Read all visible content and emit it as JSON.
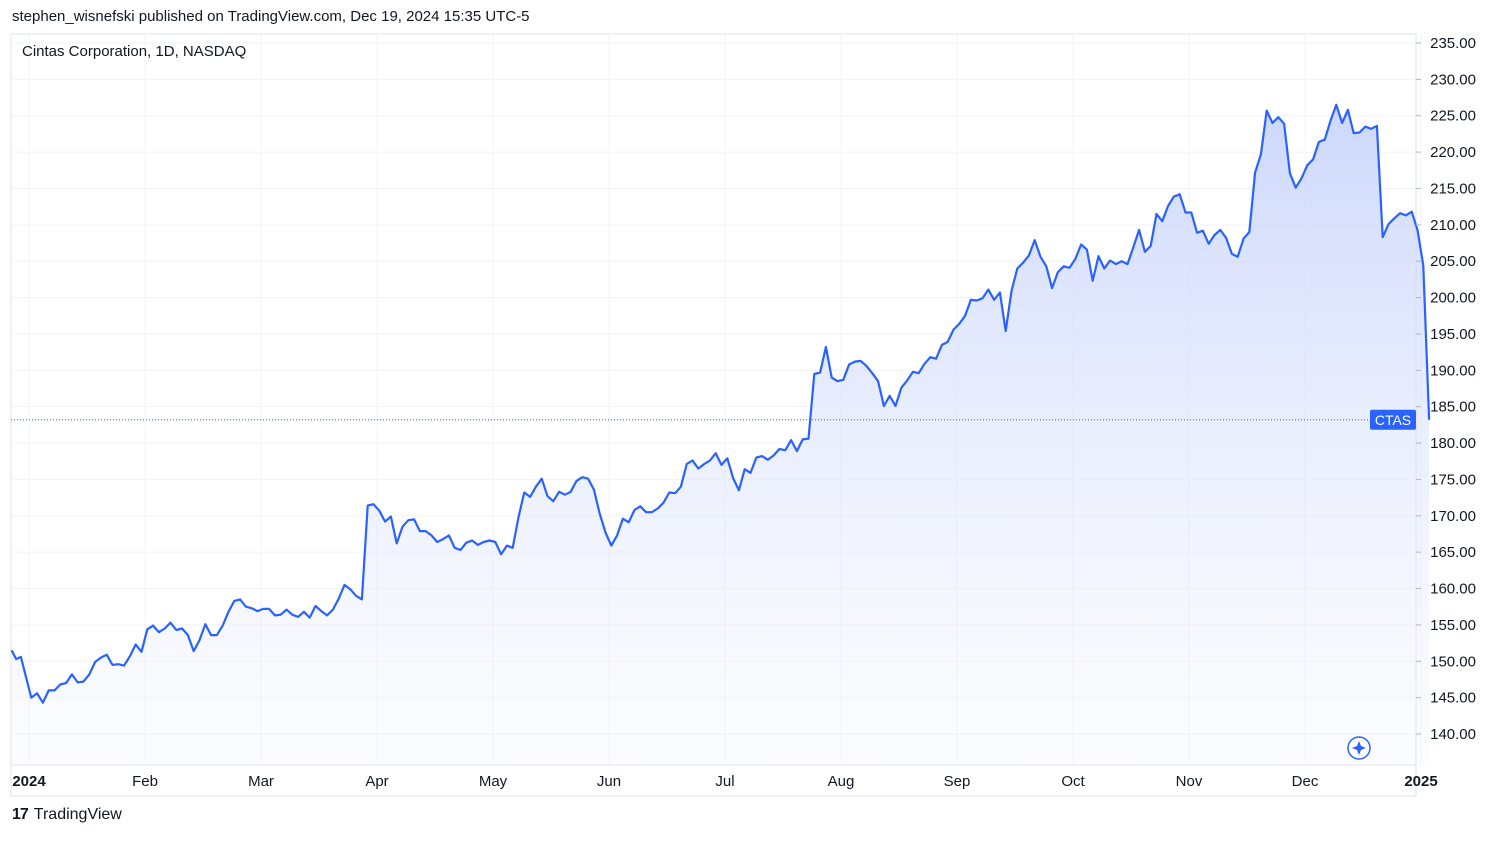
{
  "header": {
    "published_by": "stephen_wisnefski published on TradingView.com, Dec 19, 2024 15:35 UTC-5"
  },
  "footer": {
    "logo_mark": "17",
    "brand": "TradingView"
  },
  "colors": {
    "line": "#2962ff",
    "grid": "#f0f3fa",
    "ticker_badge": "#2962ff",
    "fill_top": "#c7d3fb"
  },
  "chart_data": {
    "type": "area",
    "title": "Cintas Corporation, 1D, NASDAQ",
    "ticker": "CTAS",
    "last_value": 183.2,
    "xlabel": "",
    "ylabel": "",
    "ylim": [
      136.0,
      236.0
    ],
    "y_ticks": [
      235.0,
      230.0,
      225.0,
      220.0,
      215.0,
      210.0,
      205.0,
      200.0,
      195.0,
      190.0,
      185.0,
      180.0,
      175.0,
      170.0,
      165.0,
      160.0,
      155.0,
      150.0,
      145.0,
      140.0
    ],
    "y_tick_labels": [
      "235.00",
      "230.00",
      "225.00",
      "220.00",
      "215.00",
      "210.00",
      "205.00",
      "200.00",
      "195.00",
      "190.00",
      "185.00",
      "180.00",
      "175.00",
      "170.00",
      "165.00",
      "160.00",
      "155.00",
      "150.00",
      "145.00",
      "140.00"
    ],
    "x_range": [
      -0.6,
      12.0
    ],
    "x_ticks": [
      {
        "label": "2024",
        "pos": 0.0,
        "bold": true
      },
      {
        "label": "Feb",
        "pos": 1.0
      },
      {
        "label": "Mar",
        "pos": 2.0
      },
      {
        "label": "Apr",
        "pos": 3.0
      },
      {
        "label": "May",
        "pos": 4.0
      },
      {
        "label": "Jun",
        "pos": 5.0
      },
      {
        "label": "Jul",
        "pos": 6.0
      },
      {
        "label": "Aug",
        "pos": 7.0
      },
      {
        "label": "Sep",
        "pos": 8.0
      },
      {
        "label": "Oct",
        "pos": 9.0
      },
      {
        "label": "Nov",
        "pos": 10.0
      },
      {
        "label": "Dec",
        "pos": 11.0
      },
      {
        "label": "2025",
        "pos": 12.0,
        "bold": true
      }
    ],
    "series": [
      {
        "name": "CTAS",
        "points": [
          [
            -0.15,
            151.5
          ],
          [
            -0.11,
            150.3
          ],
          [
            -0.07,
            150.6
          ],
          [
            -0.03,
            148.1
          ],
          [
            0.02,
            145.0
          ],
          [
            0.07,
            145.6
          ],
          [
            0.12,
            144.3
          ],
          [
            0.17,
            146.0
          ],
          [
            0.22,
            146.0
          ],
          [
            0.27,
            146.8
          ],
          [
            0.32,
            147.0
          ],
          [
            0.37,
            148.2
          ],
          [
            0.42,
            147.1
          ],
          [
            0.47,
            147.2
          ],
          [
            0.52,
            148.2
          ],
          [
            0.57,
            149.9
          ],
          [
            0.62,
            150.5
          ],
          [
            0.67,
            150.9
          ],
          [
            0.72,
            149.5
          ],
          [
            0.77,
            149.6
          ],
          [
            0.82,
            149.4
          ],
          [
            0.87,
            150.7
          ],
          [
            0.92,
            152.3
          ],
          [
            0.97,
            151.3
          ],
          [
            1.02,
            154.4
          ],
          [
            1.07,
            154.9
          ],
          [
            1.12,
            154.0
          ],
          [
            1.17,
            154.5
          ],
          [
            1.22,
            155.3
          ],
          [
            1.27,
            154.3
          ],
          [
            1.32,
            154.5
          ],
          [
            1.37,
            153.6
          ],
          [
            1.42,
            151.4
          ],
          [
            1.47,
            152.9
          ],
          [
            1.52,
            155.1
          ],
          [
            1.57,
            153.6
          ],
          [
            1.62,
            153.6
          ],
          [
            1.67,
            154.9
          ],
          [
            1.72,
            156.8
          ],
          [
            1.77,
            158.3
          ],
          [
            1.82,
            158.5
          ],
          [
            1.87,
            157.5
          ],
          [
            1.92,
            157.3
          ],
          [
            1.97,
            156.9
          ],
          [
            2.02,
            157.2
          ],
          [
            2.07,
            157.2
          ],
          [
            2.12,
            156.3
          ],
          [
            2.17,
            156.4
          ],
          [
            2.22,
            157.1
          ],
          [
            2.27,
            156.4
          ],
          [
            2.32,
            156.1
          ],
          [
            2.37,
            156.8
          ],
          [
            2.42,
            156.0
          ],
          [
            2.47,
            157.6
          ],
          [
            2.52,
            156.9
          ],
          [
            2.57,
            156.3
          ],
          [
            2.62,
            157.1
          ],
          [
            2.67,
            158.6
          ],
          [
            2.72,
            160.5
          ],
          [
            2.77,
            159.9
          ],
          [
            2.82,
            159.0
          ],
          [
            2.87,
            158.5
          ],
          [
            2.92,
            171.4
          ],
          [
            2.97,
            171.6
          ],
          [
            3.02,
            170.7
          ],
          [
            3.07,
            169.2
          ],
          [
            3.12,
            169.9
          ],
          [
            3.17,
            166.2
          ],
          [
            3.22,
            168.5
          ],
          [
            3.27,
            169.4
          ],
          [
            3.32,
            169.5
          ],
          [
            3.37,
            167.9
          ],
          [
            3.42,
            167.9
          ],
          [
            3.47,
            167.3
          ],
          [
            3.52,
            166.4
          ],
          [
            3.57,
            166.8
          ],
          [
            3.62,
            167.3
          ],
          [
            3.67,
            165.6
          ],
          [
            3.72,
            165.3
          ],
          [
            3.77,
            166.3
          ],
          [
            3.82,
            166.6
          ],
          [
            3.87,
            166.0
          ],
          [
            3.92,
            166.4
          ],
          [
            3.97,
            166.6
          ],
          [
            4.02,
            166.4
          ],
          [
            4.07,
            164.7
          ],
          [
            4.12,
            165.9
          ],
          [
            4.17,
            165.6
          ],
          [
            4.22,
            169.8
          ],
          [
            4.27,
            173.2
          ],
          [
            4.32,
            172.6
          ],
          [
            4.37,
            174.0
          ],
          [
            4.42,
            175.1
          ],
          [
            4.47,
            172.7
          ],
          [
            4.52,
            172.0
          ],
          [
            4.57,
            173.3
          ],
          [
            4.62,
            172.9
          ],
          [
            4.67,
            173.3
          ],
          [
            4.72,
            174.8
          ],
          [
            4.77,
            175.3
          ],
          [
            4.82,
            175.1
          ],
          [
            4.87,
            173.6
          ],
          [
            4.92,
            170.3
          ],
          [
            4.97,
            167.7
          ],
          [
            5.02,
            165.9
          ],
          [
            5.07,
            167.3
          ],
          [
            5.12,
            169.6
          ],
          [
            5.17,
            169.1
          ],
          [
            5.22,
            170.8
          ],
          [
            5.27,
            171.3
          ],
          [
            5.32,
            170.5
          ],
          [
            5.37,
            170.5
          ],
          [
            5.42,
            171.0
          ],
          [
            5.47,
            171.8
          ],
          [
            5.52,
            173.2
          ],
          [
            5.57,
            173.1
          ],
          [
            5.62,
            174.0
          ],
          [
            5.67,
            177.1
          ],
          [
            5.72,
            177.6
          ],
          [
            5.77,
            176.5
          ],
          [
            5.82,
            177.1
          ],
          [
            5.87,
            177.6
          ],
          [
            5.92,
            178.6
          ],
          [
            5.97,
            177.0
          ],
          [
            6.02,
            177.9
          ],
          [
            6.07,
            175.2
          ],
          [
            6.12,
            173.5
          ],
          [
            6.17,
            176.4
          ],
          [
            6.22,
            175.9
          ],
          [
            6.27,
            178.0
          ],
          [
            6.32,
            178.2
          ],
          [
            6.37,
            177.7
          ],
          [
            6.42,
            178.3
          ],
          [
            6.47,
            179.2
          ],
          [
            6.52,
            179.0
          ],
          [
            6.57,
            180.4
          ],
          [
            6.62,
            178.9
          ],
          [
            6.67,
            180.5
          ],
          [
            6.72,
            180.6
          ],
          [
            6.77,
            189.5
          ],
          [
            6.82,
            189.7
          ],
          [
            6.87,
            193.2
          ],
          [
            6.92,
            189.0
          ],
          [
            6.97,
            188.5
          ],
          [
            7.02,
            188.7
          ],
          [
            7.07,
            190.8
          ],
          [
            7.12,
            191.2
          ],
          [
            7.17,
            191.3
          ],
          [
            7.22,
            190.6
          ],
          [
            7.27,
            189.6
          ],
          [
            7.32,
            188.5
          ],
          [
            7.37,
            185.1
          ],
          [
            7.42,
            186.5
          ],
          [
            7.47,
            185.1
          ],
          [
            7.52,
            187.6
          ],
          [
            7.57,
            188.6
          ],
          [
            7.62,
            189.8
          ],
          [
            7.67,
            189.6
          ],
          [
            7.72,
            190.9
          ],
          [
            7.77,
            191.8
          ],
          [
            7.82,
            191.6
          ],
          [
            7.87,
            193.5
          ],
          [
            7.92,
            193.9
          ],
          [
            7.97,
            195.6
          ],
          [
            8.02,
            196.4
          ],
          [
            8.07,
            197.5
          ],
          [
            8.12,
            199.7
          ],
          [
            8.17,
            199.6
          ],
          [
            8.22,
            199.9
          ],
          [
            8.27,
            201.1
          ],
          [
            8.32,
            199.7
          ],
          [
            8.37,
            200.7
          ],
          [
            8.42,
            195.4
          ],
          [
            8.47,
            200.9
          ],
          [
            8.52,
            204.0
          ],
          [
            8.57,
            204.8
          ],
          [
            8.62,
            205.8
          ],
          [
            8.67,
            207.9
          ],
          [
            8.72,
            205.6
          ],
          [
            8.77,
            204.3
          ],
          [
            8.82,
            201.3
          ],
          [
            8.87,
            203.5
          ],
          [
            8.92,
            204.3
          ],
          [
            8.97,
            204.1
          ],
          [
            9.02,
            205.3
          ],
          [
            9.07,
            207.3
          ],
          [
            9.12,
            206.6
          ],
          [
            9.17,
            202.3
          ],
          [
            9.22,
            205.7
          ],
          [
            9.27,
            204.0
          ],
          [
            9.32,
            205.1
          ],
          [
            9.37,
            204.6
          ],
          [
            9.42,
            205.0
          ],
          [
            9.47,
            204.6
          ],
          [
            9.52,
            206.9
          ],
          [
            9.57,
            209.3
          ],
          [
            9.62,
            206.3
          ],
          [
            9.67,
            207.1
          ],
          [
            9.72,
            211.5
          ],
          [
            9.77,
            210.5
          ],
          [
            9.82,
            212.6
          ],
          [
            9.87,
            213.9
          ],
          [
            9.92,
            214.2
          ],
          [
            9.97,
            211.7
          ],
          [
            10.02,
            211.7
          ],
          [
            10.07,
            208.9
          ],
          [
            10.12,
            209.2
          ],
          [
            10.17,
            207.4
          ],
          [
            10.22,
            208.6
          ],
          [
            10.27,
            209.3
          ],
          [
            10.32,
            208.2
          ],
          [
            10.37,
            206.0
          ],
          [
            10.42,
            205.6
          ],
          [
            10.47,
            208.1
          ],
          [
            10.52,
            209.0
          ],
          [
            10.57,
            217.2
          ],
          [
            10.62,
            219.7
          ],
          [
            10.67,
            225.7
          ],
          [
            10.72,
            224.0
          ],
          [
            10.77,
            224.8
          ],
          [
            10.82,
            223.9
          ],
          [
            10.87,
            217.1
          ],
          [
            10.92,
            215.1
          ],
          [
            10.97,
            216.4
          ],
          [
            11.02,
            218.2
          ],
          [
            11.07,
            219.0
          ],
          [
            11.12,
            221.4
          ],
          [
            11.17,
            221.7
          ],
          [
            11.22,
            224.3
          ],
          [
            11.27,
            226.5
          ],
          [
            11.32,
            224.0
          ],
          [
            11.37,
            225.8
          ],
          [
            11.42,
            222.6
          ],
          [
            11.47,
            222.7
          ],
          [
            11.52,
            223.5
          ],
          [
            11.57,
            223.2
          ],
          [
            11.62,
            223.6
          ],
          [
            11.67,
            208.3
          ],
          [
            11.72,
            210.1
          ],
          [
            11.77,
            210.9
          ],
          [
            11.82,
            211.6
          ],
          [
            11.87,
            211.3
          ],
          [
            11.92,
            211.8
          ],
          [
            11.97,
            209.3
          ],
          [
            12.02,
            204.4
          ],
          [
            12.07,
            183.2
          ]
        ]
      }
    ]
  }
}
